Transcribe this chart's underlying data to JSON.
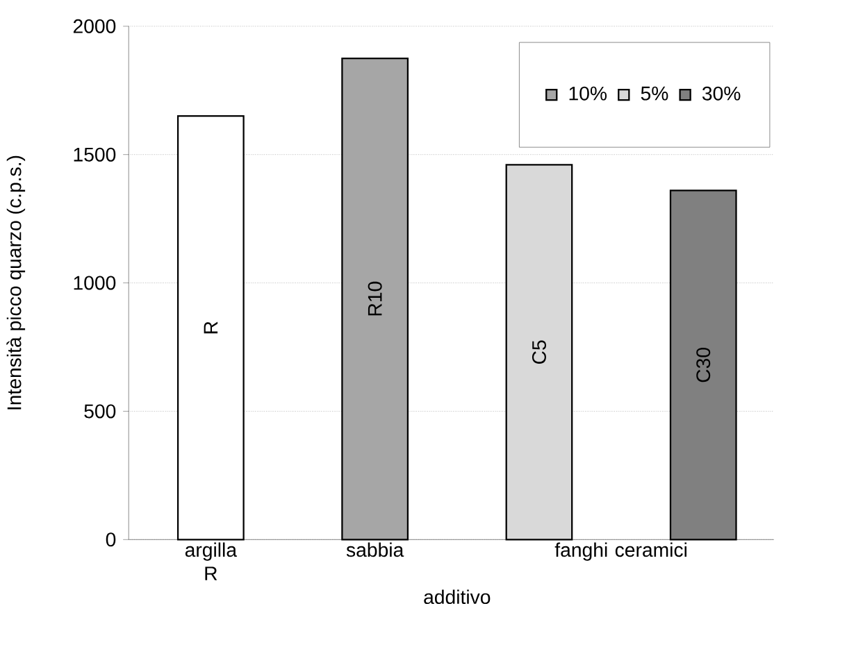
{
  "chart_data": {
    "type": "bar",
    "xlabel": "additivo",
    "ylabel": "Intensità picco quarzo (c.p.s.)",
    "categories": [
      "argilla R",
      "sabbia",
      "fanghi ceramici"
    ],
    "series": [
      {
        "color": "#ffffff",
        "values": [
          1650,
          null,
          null
        ],
        "value_labels": [
          "R",
          null,
          null
        ]
      },
      {
        "name": "10%",
        "color": "#a6a6a6",
        "values": [
          null,
          1875,
          null
        ],
        "value_labels": [
          null,
          "R10",
          null
        ]
      },
      {
        "name": "5%",
        "color": "#d9d9d9",
        "values": [
          null,
          null,
          1460
        ],
        "value_labels": [
          null,
          null,
          "C5"
        ]
      },
      {
        "name": "30%",
        "color": "#808080",
        "values": [
          null,
          null,
          1360
        ],
        "value_labels": [
          null,
          null,
          "C30"
        ]
      }
    ],
    "ylim": [
      0,
      2000
    ],
    "yticks": [
      0,
      500,
      1000,
      1500,
      2000
    ],
    "grid": "y",
    "legend": "top right"
  }
}
